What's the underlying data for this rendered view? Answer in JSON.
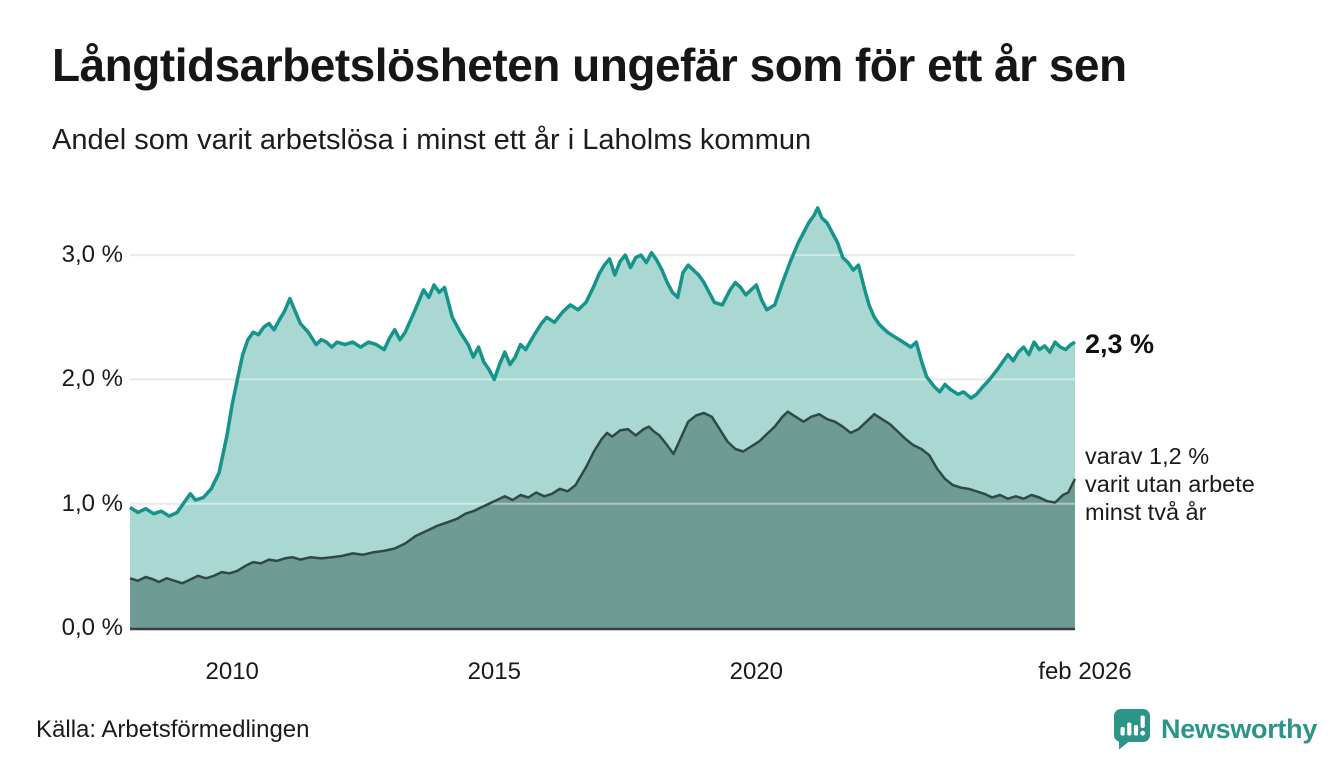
{
  "header": {
    "title": "Långtidsarbetslösheten ungefär som för ett år sen",
    "subtitle": "Andel som varit arbetslösa i minst ett år i Laholms kommun"
  },
  "annotations": {
    "latest_total": "2,3 %",
    "secondary_line1": "varav 1,2 %",
    "secondary_line2": "varit utan arbete",
    "secondary_line3": "minst två år"
  },
  "footer": {
    "source": "Källa: Arbetsförmedlingen",
    "brand": "Newsworthy"
  },
  "colors": {
    "accent_line": "#14948a",
    "accent_fill": "#a9d7d1",
    "dark_fill": "#6f9b95",
    "dark_line": "#2f4a45",
    "grid": "#d9d9d9",
    "grid_over_fill": "rgba(255,255,255,0.45)",
    "axis": "#3d3d3d",
    "text": "#1a1a1a",
    "brand_teal": "#2d9488"
  },
  "chart_data": {
    "type": "area",
    "title": "Långtidsarbetslösheten ungefär som för ett år sen",
    "subtitle": "Andel som varit arbetslösa i minst ett år i Laholms kommun",
    "unit": "%",
    "x_domain": [
      2008.05,
      2026.08
    ],
    "y_domain": [
      0,
      3.5
    ],
    "grid": true,
    "legend_position": "right-annotations",
    "y_ticks": [
      {
        "value": 0,
        "label": "0,0 %"
      },
      {
        "value": 1,
        "label": "1,0 %"
      },
      {
        "value": 2,
        "label": "2,0 %"
      },
      {
        "value": 3,
        "label": "3,0 %"
      }
    ],
    "x_ticks": [
      {
        "value": 2010,
        "label": "2010"
      },
      {
        "value": 2015,
        "label": "2015"
      },
      {
        "value": 2020,
        "label": "2020"
      },
      {
        "value": 2026.08,
        "label": "feb 2026"
      }
    ],
    "series": [
      {
        "name": "Andel arbetslösa minst ett år",
        "latest_label": "2,3 %",
        "latest_value": 2.3,
        "line_color": "#14948a",
        "fill_color": "#a9d7d1",
        "points": [
          [
            2008.05,
            0.97
          ],
          [
            2008.2,
            0.93
          ],
          [
            2008.35,
            0.96
          ],
          [
            2008.5,
            0.92
          ],
          [
            2008.65,
            0.94
          ],
          [
            2008.8,
            0.9
          ],
          [
            2008.95,
            0.93
          ],
          [
            2009.1,
            1.02
          ],
          [
            2009.2,
            1.08
          ],
          [
            2009.3,
            1.03
          ],
          [
            2009.45,
            1.05
          ],
          [
            2009.6,
            1.12
          ],
          [
            2009.75,
            1.25
          ],
          [
            2009.9,
            1.55
          ],
          [
            2010.0,
            1.8
          ],
          [
            2010.1,
            2.0
          ],
          [
            2010.2,
            2.2
          ],
          [
            2010.3,
            2.32
          ],
          [
            2010.4,
            2.38
          ],
          [
            2010.5,
            2.36
          ],
          [
            2010.6,
            2.42
          ],
          [
            2010.7,
            2.45
          ],
          [
            2010.8,
            2.4
          ],
          [
            2010.9,
            2.48
          ],
          [
            2011.0,
            2.55
          ],
          [
            2011.1,
            2.65
          ],
          [
            2011.2,
            2.55
          ],
          [
            2011.3,
            2.45
          ],
          [
            2011.45,
            2.38
          ],
          [
            2011.6,
            2.28
          ],
          [
            2011.7,
            2.32
          ],
          [
            2011.8,
            2.3
          ],
          [
            2011.9,
            2.26
          ],
          [
            2012.0,
            2.3
          ],
          [
            2012.15,
            2.28
          ],
          [
            2012.3,
            2.3
          ],
          [
            2012.45,
            2.26
          ],
          [
            2012.6,
            2.3
          ],
          [
            2012.75,
            2.28
          ],
          [
            2012.9,
            2.24
          ],
          [
            2013.0,
            2.33
          ],
          [
            2013.1,
            2.4
          ],
          [
            2013.2,
            2.32
          ],
          [
            2013.3,
            2.38
          ],
          [
            2013.45,
            2.52
          ],
          [
            2013.55,
            2.62
          ],
          [
            2013.65,
            2.72
          ],
          [
            2013.75,
            2.66
          ],
          [
            2013.85,
            2.76
          ],
          [
            2013.95,
            2.7
          ],
          [
            2014.05,
            2.74
          ],
          [
            2014.2,
            2.5
          ],
          [
            2014.35,
            2.38
          ],
          [
            2014.5,
            2.28
          ],
          [
            2014.6,
            2.18
          ],
          [
            2014.7,
            2.26
          ],
          [
            2014.8,
            2.14
          ],
          [
            2014.9,
            2.08
          ],
          [
            2015.0,
            2.0
          ],
          [
            2015.1,
            2.12
          ],
          [
            2015.2,
            2.22
          ],
          [
            2015.3,
            2.12
          ],
          [
            2015.4,
            2.18
          ],
          [
            2015.5,
            2.28
          ],
          [
            2015.6,
            2.24
          ],
          [
            2015.75,
            2.35
          ],
          [
            2015.9,
            2.45
          ],
          [
            2016.0,
            2.5
          ],
          [
            2016.15,
            2.46
          ],
          [
            2016.3,
            2.54
          ],
          [
            2016.45,
            2.6
          ],
          [
            2016.6,
            2.56
          ],
          [
            2016.75,
            2.62
          ],
          [
            2016.9,
            2.75
          ],
          [
            2017.0,
            2.85
          ],
          [
            2017.1,
            2.92
          ],
          [
            2017.2,
            2.97
          ],
          [
            2017.3,
            2.84
          ],
          [
            2017.4,
            2.95
          ],
          [
            2017.5,
            3.0
          ],
          [
            2017.6,
            2.9
          ],
          [
            2017.7,
            2.98
          ],
          [
            2017.8,
            3.0
          ],
          [
            2017.9,
            2.94
          ],
          [
            2018.0,
            3.02
          ],
          [
            2018.1,
            2.96
          ],
          [
            2018.2,
            2.88
          ],
          [
            2018.3,
            2.78
          ],
          [
            2018.4,
            2.7
          ],
          [
            2018.5,
            2.66
          ],
          [
            2018.6,
            2.86
          ],
          [
            2018.7,
            2.92
          ],
          [
            2018.8,
            2.88
          ],
          [
            2018.9,
            2.84
          ],
          [
            2019.0,
            2.78
          ],
          [
            2019.1,
            2.7
          ],
          [
            2019.2,
            2.62
          ],
          [
            2019.35,
            2.6
          ],
          [
            2019.5,
            2.72
          ],
          [
            2019.6,
            2.78
          ],
          [
            2019.7,
            2.74
          ],
          [
            2019.8,
            2.68
          ],
          [
            2019.9,
            2.72
          ],
          [
            2020.0,
            2.76
          ],
          [
            2020.1,
            2.64
          ],
          [
            2020.2,
            2.56
          ],
          [
            2020.35,
            2.6
          ],
          [
            2020.5,
            2.78
          ],
          [
            2020.65,
            2.95
          ],
          [
            2020.8,
            3.1
          ],
          [
            2020.9,
            3.18
          ],
          [
            2021.0,
            3.26
          ],
          [
            2021.1,
            3.32
          ],
          [
            2021.17,
            3.38
          ],
          [
            2021.25,
            3.3
          ],
          [
            2021.35,
            3.26
          ],
          [
            2021.45,
            3.18
          ],
          [
            2021.55,
            3.1
          ],
          [
            2021.65,
            2.98
          ],
          [
            2021.75,
            2.94
          ],
          [
            2021.85,
            2.88
          ],
          [
            2021.95,
            2.92
          ],
          [
            2022.05,
            2.75
          ],
          [
            2022.15,
            2.6
          ],
          [
            2022.25,
            2.5
          ],
          [
            2022.35,
            2.44
          ],
          [
            2022.5,
            2.38
          ],
          [
            2022.65,
            2.34
          ],
          [
            2022.8,
            2.3
          ],
          [
            2022.95,
            2.26
          ],
          [
            2023.05,
            2.3
          ],
          [
            2023.15,
            2.15
          ],
          [
            2023.25,
            2.02
          ],
          [
            2023.4,
            1.94
          ],
          [
            2023.5,
            1.9
          ],
          [
            2023.6,
            1.96
          ],
          [
            2023.7,
            1.92
          ],
          [
            2023.85,
            1.88
          ],
          [
            2023.95,
            1.9
          ],
          [
            2024.1,
            1.85
          ],
          [
            2024.2,
            1.88
          ],
          [
            2024.3,
            1.93
          ],
          [
            2024.45,
            2.0
          ],
          [
            2024.6,
            2.08
          ],
          [
            2024.7,
            2.14
          ],
          [
            2024.8,
            2.2
          ],
          [
            2024.9,
            2.15
          ],
          [
            2025.0,
            2.22
          ],
          [
            2025.1,
            2.26
          ],
          [
            2025.2,
            2.2
          ],
          [
            2025.3,
            2.3
          ],
          [
            2025.4,
            2.24
          ],
          [
            2025.5,
            2.27
          ],
          [
            2025.6,
            2.22
          ],
          [
            2025.7,
            2.3
          ],
          [
            2025.8,
            2.26
          ],
          [
            2025.9,
            2.24
          ],
          [
            2026.0,
            2.28
          ],
          [
            2026.08,
            2.3
          ]
        ]
      },
      {
        "name": "varav arbetslösa minst två år",
        "latest_value": 1.2,
        "line_color": "#2f4a45",
        "fill_color": "#6f9b95",
        "points": [
          [
            2008.05,
            0.4
          ],
          [
            2008.2,
            0.38
          ],
          [
            2008.35,
            0.41
          ],
          [
            2008.5,
            0.39
          ],
          [
            2008.6,
            0.37
          ],
          [
            2008.75,
            0.4
          ],
          [
            2008.9,
            0.38
          ],
          [
            2009.05,
            0.36
          ],
          [
            2009.2,
            0.39
          ],
          [
            2009.35,
            0.42
          ],
          [
            2009.5,
            0.4
          ],
          [
            2009.65,
            0.42
          ],
          [
            2009.8,
            0.45
          ],
          [
            2009.95,
            0.44
          ],
          [
            2010.1,
            0.46
          ],
          [
            2010.25,
            0.5
          ],
          [
            2010.4,
            0.53
          ],
          [
            2010.55,
            0.52
          ],
          [
            2010.7,
            0.55
          ],
          [
            2010.85,
            0.54
          ],
          [
            2011.0,
            0.56
          ],
          [
            2011.15,
            0.57
          ],
          [
            2011.3,
            0.55
          ],
          [
            2011.5,
            0.57
          ],
          [
            2011.7,
            0.56
          ],
          [
            2011.9,
            0.57
          ],
          [
            2012.1,
            0.58
          ],
          [
            2012.3,
            0.6
          ],
          [
            2012.5,
            0.59
          ],
          [
            2012.7,
            0.61
          ],
          [
            2012.9,
            0.62
          ],
          [
            2013.1,
            0.64
          ],
          [
            2013.3,
            0.68
          ],
          [
            2013.5,
            0.74
          ],
          [
            2013.7,
            0.78
          ],
          [
            2013.9,
            0.82
          ],
          [
            2014.1,
            0.85
          ],
          [
            2014.3,
            0.88
          ],
          [
            2014.45,
            0.92
          ],
          [
            2014.6,
            0.94
          ],
          [
            2014.75,
            0.97
          ],
          [
            2014.9,
            1.0
          ],
          [
            2015.05,
            1.03
          ],
          [
            2015.2,
            1.06
          ],
          [
            2015.35,
            1.03
          ],
          [
            2015.5,
            1.07
          ],
          [
            2015.65,
            1.05
          ],
          [
            2015.8,
            1.09
          ],
          [
            2015.95,
            1.06
          ],
          [
            2016.1,
            1.08
          ],
          [
            2016.25,
            1.12
          ],
          [
            2016.4,
            1.1
          ],
          [
            2016.55,
            1.15
          ],
          [
            2016.76,
            1.3
          ],
          [
            2016.9,
            1.42
          ],
          [
            2017.05,
            1.52
          ],
          [
            2017.15,
            1.57
          ],
          [
            2017.25,
            1.54
          ],
          [
            2017.4,
            1.59
          ],
          [
            2017.55,
            1.6
          ],
          [
            2017.7,
            1.55
          ],
          [
            2017.85,
            1.6
          ],
          [
            2017.95,
            1.62
          ],
          [
            2018.05,
            1.58
          ],
          [
            2018.15,
            1.55
          ],
          [
            2018.3,
            1.47
          ],
          [
            2018.42,
            1.4
          ],
          [
            2018.55,
            1.52
          ],
          [
            2018.7,
            1.66
          ],
          [
            2018.85,
            1.71
          ],
          [
            2019.0,
            1.73
          ],
          [
            2019.15,
            1.7
          ],
          [
            2019.3,
            1.6
          ],
          [
            2019.45,
            1.5
          ],
          [
            2019.6,
            1.44
          ],
          [
            2019.75,
            1.42
          ],
          [
            2019.9,
            1.46
          ],
          [
            2020.05,
            1.5
          ],
          [
            2020.2,
            1.56
          ],
          [
            2020.35,
            1.62
          ],
          [
            2020.5,
            1.7
          ],
          [
            2020.6,
            1.74
          ],
          [
            2020.75,
            1.7
          ],
          [
            2020.9,
            1.66
          ],
          [
            2021.05,
            1.7
          ],
          [
            2021.2,
            1.72
          ],
          [
            2021.35,
            1.68
          ],
          [
            2021.5,
            1.66
          ],
          [
            2021.65,
            1.62
          ],
          [
            2021.8,
            1.57
          ],
          [
            2021.95,
            1.6
          ],
          [
            2022.1,
            1.66
          ],
          [
            2022.25,
            1.72
          ],
          [
            2022.4,
            1.68
          ],
          [
            2022.55,
            1.64
          ],
          [
            2022.7,
            1.58
          ],
          [
            2022.85,
            1.52
          ],
          [
            2023.0,
            1.47
          ],
          [
            2023.15,
            1.44
          ],
          [
            2023.3,
            1.39
          ],
          [
            2023.45,
            1.28
          ],
          [
            2023.6,
            1.2
          ],
          [
            2023.75,
            1.15
          ],
          [
            2023.9,
            1.13
          ],
          [
            2024.05,
            1.12
          ],
          [
            2024.2,
            1.1
          ],
          [
            2024.35,
            1.08
          ],
          [
            2024.5,
            1.05
          ],
          [
            2024.65,
            1.07
          ],
          [
            2024.8,
            1.04
          ],
          [
            2024.95,
            1.06
          ],
          [
            2025.1,
            1.04
          ],
          [
            2025.25,
            1.07
          ],
          [
            2025.4,
            1.05
          ],
          [
            2025.55,
            1.02
          ],
          [
            2025.7,
            1.01
          ],
          [
            2025.85,
            1.07
          ],
          [
            2025.95,
            1.09
          ],
          [
            2026.08,
            1.2
          ]
        ]
      }
    ]
  }
}
